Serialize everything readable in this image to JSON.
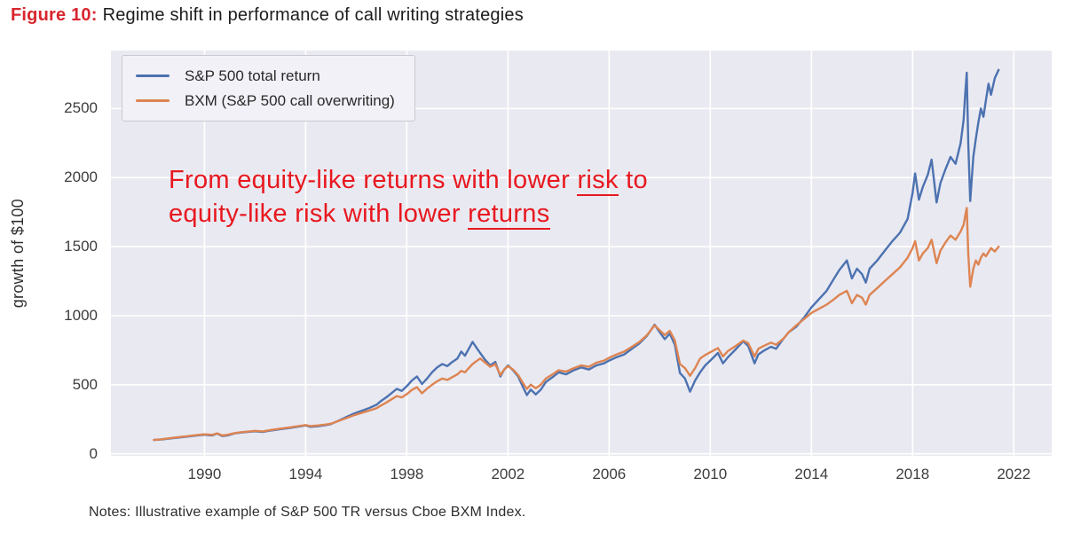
{
  "header": {
    "figure_label": "Figure 10:",
    "figure_title": "Regime shift in performance of call writing strategies"
  },
  "annotation": {
    "line1_pre": "From equity-like returns with lower ",
    "line1_underlined": "risk",
    "line1_post": " to",
    "line2_pre": "equity-like risk with lower ",
    "line2_underlined": "returns"
  },
  "notes": {
    "text": "Notes: Illustrative example of S&P 500 TR versus Cboe BXM Index."
  },
  "colors": {
    "figure_label_red": "#d8262e",
    "annotation_red": "#e8181f",
    "plot_bg": "#e9e9f1",
    "gridline": "#ffffff",
    "tick_text": "#3d3d3d",
    "sp500_blue": "#4c72b0",
    "bxm_orange": "#dd8452"
  },
  "chart_data": {
    "type": "line",
    "title": "",
    "xlabel": "",
    "ylabel": "growth of $100",
    "x_domain": [
      1986.3,
      2023.5
    ],
    "y_domain": [
      -15,
      2920
    ],
    "xticks": [
      1990,
      1994,
      1998,
      2002,
      2006,
      2010,
      2014,
      2018,
      2022
    ],
    "yticks": [
      0,
      500,
      1000,
      1500,
      2000,
      2500
    ],
    "grid": true,
    "legend_position": "upper left",
    "series": [
      {
        "id": "sp500-tr",
        "name": "S&P 500 total return",
        "color": "#4c72b0",
        "x": [
          1988.0,
          1988.3,
          1988.6,
          1989.0,
          1989.4,
          1989.7,
          1990.0,
          1990.3,
          1990.5,
          1990.7,
          1990.9,
          1991.2,
          1991.5,
          1991.8,
          1992.0,
          1992.3,
          1992.6,
          1993.0,
          1993.4,
          1993.7,
          1994.0,
          1994.2,
          1994.5,
          1994.8,
          1995.0,
          1995.3,
          1995.6,
          1995.9,
          1996.2,
          1996.5,
          1996.8,
          1997.0,
          1997.2,
          1997.4,
          1997.6,
          1997.8,
          1998.0,
          1998.2,
          1998.4,
          1998.6,
          1998.8,
          1999.0,
          1999.2,
          1999.4,
          1999.6,
          1999.8,
          2000.0,
          2000.15,
          2000.3,
          2000.45,
          2000.6,
          2000.75,
          2000.9,
          2001.1,
          2001.3,
          2001.5,
          2001.7,
          2001.85,
          2002.0,
          2002.2,
          2002.4,
          2002.6,
          2002.75,
          2002.9,
          2003.1,
          2003.3,
          2003.5,
          2003.8,
          2004.0,
          2004.3,
          2004.6,
          2004.9,
          2005.2,
          2005.5,
          2005.8,
          2006.0,
          2006.3,
          2006.6,
          2006.9,
          2007.2,
          2007.5,
          2007.8,
          2008.0,
          2008.2,
          2008.4,
          2008.6,
          2008.8,
          2009.0,
          2009.2,
          2009.4,
          2009.6,
          2009.8,
          2010.0,
          2010.3,
          2010.5,
          2010.7,
          2011.0,
          2011.3,
          2011.5,
          2011.75,
          2011.9,
          2012.1,
          2012.4,
          2012.6,
          2012.9,
          2013.1,
          2013.4,
          2013.7,
          2014.0,
          2014.3,
          2014.6,
          2014.9,
          2015.1,
          2015.4,
          2015.6,
          2015.8,
          2016.0,
          2016.15,
          2016.3,
          2016.6,
          2016.9,
          2017.2,
          2017.5,
          2017.8,
          2018.0,
          2018.1,
          2018.25,
          2018.4,
          2018.6,
          2018.75,
          2018.95,
          2019.1,
          2019.3,
          2019.5,
          2019.7,
          2019.9,
          2020.02,
          2020.08,
          2020.14,
          2020.2,
          2020.28,
          2020.4,
          2020.5,
          2020.6,
          2020.7,
          2020.8,
          2020.9,
          2021.0,
          2021.1,
          2021.25,
          2021.4
        ],
        "y": [
          100,
          104,
          110,
          118,
          126,
          132,
          138,
          133,
          146,
          128,
          132,
          148,
          155,
          160,
          163,
          158,
          168,
          178,
          188,
          196,
          205,
          195,
          200,
          208,
          215,
          240,
          265,
          290,
          310,
          330,
          355,
          385,
          410,
          440,
          470,
          455,
          490,
          530,
          560,
          505,
          545,
          590,
          625,
          650,
          635,
          665,
          690,
          740,
          710,
          760,
          810,
          770,
          730,
          680,
          640,
          665,
          560,
          610,
          640,
          605,
          560,
          480,
          425,
          465,
          430,
          465,
          520,
          560,
          590,
          575,
          605,
          625,
          610,
          640,
          655,
          675,
          700,
          720,
          760,
          800,
          855,
          935,
          880,
          830,
          870,
          790,
          585,
          545,
          450,
          530,
          590,
          640,
          675,
          730,
          655,
          700,
          755,
          815,
          780,
          655,
          720,
          745,
          775,
          760,
          835,
          880,
          920,
          985,
          1060,
          1120,
          1180,
          1270,
          1330,
          1400,
          1270,
          1340,
          1300,
          1240,
          1340,
          1400,
          1470,
          1540,
          1600,
          1700,
          1890,
          2030,
          1840,
          1930,
          2020,
          2130,
          1820,
          1960,
          2060,
          2150,
          2100,
          2250,
          2420,
          2600,
          2760,
          2250,
          1830,
          2150,
          2280,
          2400,
          2500,
          2440,
          2560,
          2680,
          2600,
          2720,
          2780
        ]
      },
      {
        "id": "bxm",
        "name": "BXM (S&P 500 call overwriting)",
        "color": "#dd8452",
        "x": [
          1988.0,
          1988.3,
          1988.6,
          1989.0,
          1989.4,
          1989.7,
          1990.0,
          1990.3,
          1990.5,
          1990.7,
          1990.9,
          1991.2,
          1991.5,
          1991.8,
          1992.0,
          1992.3,
          1992.6,
          1993.0,
          1993.4,
          1993.7,
          1994.0,
          1994.2,
          1994.5,
          1994.8,
          1995.0,
          1995.3,
          1995.6,
          1995.9,
          1996.2,
          1996.5,
          1996.8,
          1997.0,
          1997.2,
          1997.4,
          1997.6,
          1997.8,
          1998.0,
          1998.2,
          1998.4,
          1998.6,
          1998.8,
          1999.0,
          1999.2,
          1999.4,
          1999.6,
          1999.8,
          2000.0,
          2000.15,
          2000.3,
          2000.45,
          2000.6,
          2000.75,
          2000.9,
          2001.1,
          2001.3,
          2001.5,
          2001.7,
          2001.85,
          2002.0,
          2002.2,
          2002.4,
          2002.6,
          2002.75,
          2002.9,
          2003.1,
          2003.3,
          2003.5,
          2003.8,
          2004.0,
          2004.3,
          2004.6,
          2004.9,
          2005.2,
          2005.5,
          2005.8,
          2006.0,
          2006.3,
          2006.6,
          2006.9,
          2007.2,
          2007.5,
          2007.8,
          2008.0,
          2008.2,
          2008.4,
          2008.6,
          2008.8,
          2009.0,
          2009.2,
          2009.4,
          2009.6,
          2009.8,
          2010.0,
          2010.3,
          2010.5,
          2010.7,
          2011.0,
          2011.3,
          2011.5,
          2011.75,
          2011.9,
          2012.1,
          2012.4,
          2012.6,
          2012.9,
          2013.1,
          2013.4,
          2013.7,
          2014.0,
          2014.3,
          2014.6,
          2014.9,
          2015.1,
          2015.4,
          2015.6,
          2015.8,
          2016.0,
          2016.15,
          2016.3,
          2016.6,
          2016.9,
          2017.2,
          2017.5,
          2017.8,
          2018.0,
          2018.1,
          2018.25,
          2018.4,
          2018.6,
          2018.75,
          2018.95,
          2019.1,
          2019.3,
          2019.5,
          2019.7,
          2019.9,
          2020.02,
          2020.08,
          2020.14,
          2020.2,
          2020.28,
          2020.4,
          2020.5,
          2020.6,
          2020.7,
          2020.8,
          2020.9,
          2021.0,
          2021.1,
          2021.25,
          2021.4
        ],
        "y": [
          100,
          105,
          112,
          121,
          129,
          135,
          141,
          137,
          148,
          133,
          137,
          150,
          157,
          162,
          166,
          162,
          172,
          182,
          192,
          200,
          208,
          200,
          205,
          212,
          218,
          238,
          258,
          278,
          295,
          312,
          330,
          352,
          372,
          395,
          418,
          408,
          432,
          462,
          482,
          438,
          472,
          500,
          525,
          545,
          535,
          555,
          575,
          600,
          590,
          620,
          650,
          670,
          690,
          660,
          630,
          650,
          570,
          610,
          635,
          610,
          570,
          510,
          470,
          500,
          475,
          500,
          545,
          580,
          605,
          595,
          620,
          640,
          630,
          660,
          675,
          695,
          720,
          740,
          775,
          810,
          860,
          930,
          895,
          860,
          890,
          820,
          650,
          620,
          565,
          620,
          690,
          715,
          735,
          765,
          705,
          745,
          780,
          820,
          800,
          705,
          760,
          780,
          805,
          790,
          835,
          880,
          930,
          975,
          1020,
          1050,
          1080,
          1120,
          1150,
          1180,
          1090,
          1150,
          1130,
          1080,
          1150,
          1200,
          1250,
          1300,
          1350,
          1420,
          1490,
          1540,
          1400,
          1450,
          1490,
          1550,
          1380,
          1470,
          1530,
          1580,
          1550,
          1610,
          1660,
          1720,
          1780,
          1450,
          1210,
          1340,
          1400,
          1370,
          1420,
          1450,
          1430,
          1460,
          1490,
          1465,
          1500
        ]
      }
    ]
  }
}
